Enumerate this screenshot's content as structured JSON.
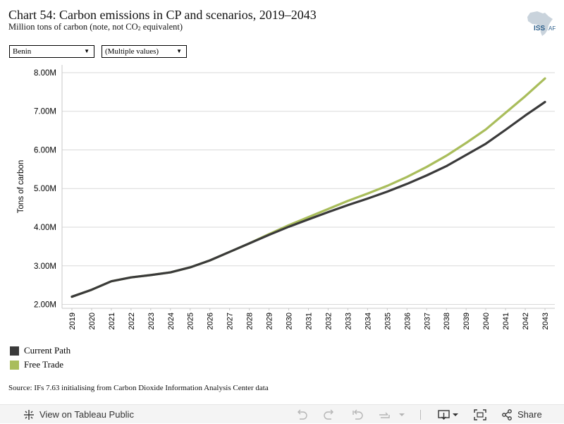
{
  "header": {
    "title": "Chart 54: Carbon emissions in CP and scenarios, 2019–2043",
    "subtitle_main": "Million tons of carbon (note, not CO",
    "subtitle_sub": "2",
    "subtitle_end": " equivalent)",
    "logo_text_1": "ISS",
    "logo_text_2": "AF"
  },
  "filters": {
    "country": "Benin",
    "scenario": "(Multiple values)"
  },
  "legend": [
    {
      "label": "Current Path",
      "color": "#3a3a3a"
    },
    {
      "label": "Free Trade",
      "color": "#a9bd5b"
    }
  ],
  "source": "Source: IFs 7.63 initialising from Carbon Dioxide Information Analysis Center data",
  "toolbar": {
    "view_label": "View on Tableau Public",
    "share_label": "Share"
  },
  "chart_data": {
    "type": "line",
    "ylabel": "Tons of carbon",
    "xlabel": "",
    "ylim": [
      1900000,
      8200000
    ],
    "yticks": [
      2000000,
      3000000,
      4000000,
      5000000,
      6000000,
      7000000,
      8000000
    ],
    "ytick_labels": [
      "2.00M",
      "3.00M",
      "4.00M",
      "5.00M",
      "6.00M",
      "7.00M",
      "8.00M"
    ],
    "grid": true,
    "x": [
      "2019",
      "2020",
      "2021",
      "2022",
      "2023",
      "2024",
      "2025",
      "2026",
      "2027",
      "2028",
      "2029",
      "2030",
      "2031",
      "2032",
      "2033",
      "2034",
      "2035",
      "2036",
      "2037",
      "2038",
      "2039",
      "2040",
      "2041",
      "2042",
      "2043"
    ],
    "xtick_labels": [
      "2019",
      "2020",
      "2021",
      "2022",
      "2023",
      "2024",
      "2025",
      "2026",
      "2027",
      "2028",
      "2029",
      "2030",
      "2031",
      "2032",
      "2033",
      "2034",
      "2035",
      "2036",
      "2037",
      "2038",
      "2039",
      "2040",
      "2041",
      "2042",
      "2043"
    ],
    "series": [
      {
        "name": "Free Trade",
        "color": "#a9bd5b",
        "values": [
          2200000,
          2380000,
          2600000,
          2700000,
          2760000,
          2830000,
          2960000,
          3140000,
          3360000,
          3580000,
          3820000,
          4050000,
          4260000,
          4470000,
          4680000,
          4870000,
          5070000,
          5300000,
          5560000,
          5850000,
          6180000,
          6530000,
          6960000,
          7390000,
          7850000
        ]
      },
      {
        "name": "Current Path",
        "color": "#3a3a3a",
        "values": [
          2200000,
          2380000,
          2600000,
          2700000,
          2760000,
          2830000,
          2960000,
          3140000,
          3360000,
          3580000,
          3800000,
          4010000,
          4200000,
          4390000,
          4570000,
          4740000,
          4920000,
          5120000,
          5340000,
          5580000,
          5870000,
          6160000,
          6520000,
          6890000,
          7240000
        ]
      }
    ]
  }
}
